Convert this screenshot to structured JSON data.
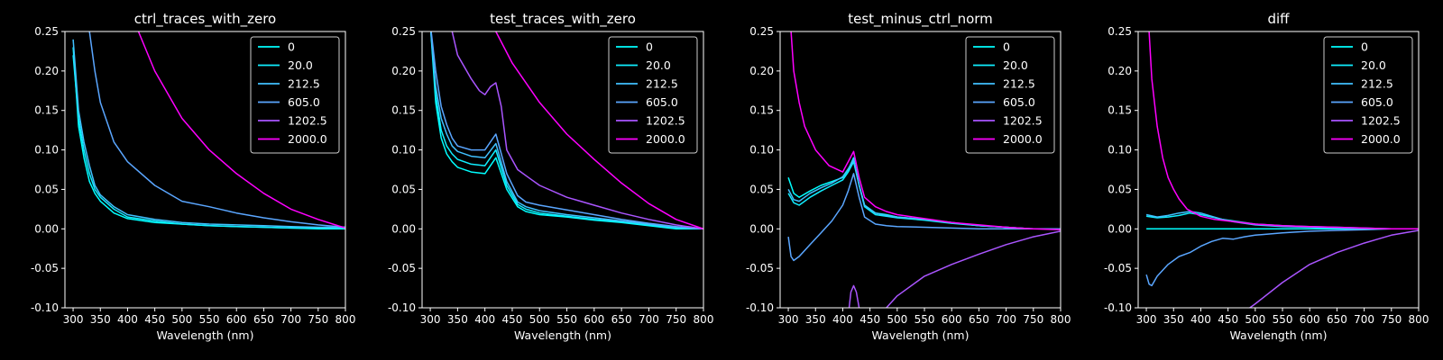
{
  "figure": {
    "background": "#000000",
    "foreground": "#ffffff"
  },
  "legend_entries": [
    {
      "label": "0",
      "color": "#00ffff"
    },
    {
      "label": "20.0",
      "color": "#10eeff"
    },
    {
      "label": "212.5",
      "color": "#40c0ff"
    },
    {
      "label": "605.0",
      "color": "#5aa6ff"
    },
    {
      "label": "1202.5",
      "color": "#aa55ff"
    },
    {
      "label": "2000.0",
      "color": "#ff00ff"
    }
  ],
  "chart_data": [
    {
      "type": "line",
      "title": "ctrl_traces_with_zero",
      "xlabel": "Wavelength (nm)",
      "ylabel": "",
      "xlim": [
        285,
        800
      ],
      "ylim": [
        -0.1,
        0.25
      ],
      "xticks": [
        300,
        350,
        400,
        450,
        500,
        550,
        600,
        650,
        700,
        750,
        800
      ],
      "yticks": [
        -0.1,
        -0.05,
        0.0,
        0.05,
        0.1,
        0.15,
        0.2,
        0.25
      ],
      "legend_position": "upper right",
      "grid": false,
      "series": [
        {
          "name": "0",
          "color": "#00ffff",
          "x": [
            300,
            310,
            320,
            330,
            340,
            350,
            375,
            400,
            450,
            500,
            550,
            600,
            650,
            700,
            750,
            800
          ],
          "y": [
            0.23,
            0.13,
            0.09,
            0.06,
            0.045,
            0.035,
            0.02,
            0.013,
            0.008,
            0.006,
            0.004,
            0.003,
            0.002,
            0.001,
            0.0,
            0.0
          ]
        },
        {
          "name": "20.0",
          "color": "#10eeff",
          "x": [
            300,
            310,
            320,
            330,
            340,
            350,
            375,
            400,
            450,
            500,
            550,
            600,
            650,
            700,
            750,
            800
          ],
          "y": [
            0.22,
            0.14,
            0.1,
            0.07,
            0.05,
            0.04,
            0.025,
            0.015,
            0.01,
            0.006,
            0.004,
            0.003,
            0.002,
            0.001,
            0.001,
            0.001
          ]
        },
        {
          "name": "212.5",
          "color": "#40c0ff",
          "x": [
            300,
            310,
            320,
            330,
            340,
            350,
            375,
            400,
            450,
            500,
            550,
            600,
            650,
            700,
            750,
            800
          ],
          "y": [
            0.24,
            0.15,
            0.11,
            0.08,
            0.055,
            0.043,
            0.028,
            0.018,
            0.012,
            0.008,
            0.006,
            0.005,
            0.004,
            0.003,
            0.002,
            0.002
          ]
        },
        {
          "name": "605.0",
          "color": "#5aa6ff",
          "x": [
            300,
            330,
            340,
            350,
            375,
            400,
            450,
            500,
            550,
            600,
            650,
            700,
            750,
            800
          ],
          "y": [
            0.34,
            0.25,
            0.2,
            0.16,
            0.11,
            0.085,
            0.055,
            0.035,
            0.028,
            0.02,
            0.014,
            0.009,
            0.005,
            0.002
          ]
        },
        {
          "name": "1202.5",
          "color": "#aa55ff",
          "x": [],
          "y": []
        },
        {
          "name": "2000.0",
          "color": "#ff00ff",
          "x": [
            420,
            450,
            500,
            550,
            600,
            650,
            700,
            750,
            800
          ],
          "y": [
            0.25,
            0.2,
            0.14,
            0.1,
            0.07,
            0.045,
            0.025,
            0.012,
            0.001
          ]
        }
      ]
    },
    {
      "type": "line",
      "title": "test_traces_with_zero",
      "xlabel": "Wavelength (nm)",
      "ylabel": "",
      "xlim": [
        285,
        800
      ],
      "ylim": [
        -0.1,
        0.25
      ],
      "xticks": [
        300,
        350,
        400,
        450,
        500,
        550,
        600,
        650,
        700,
        750,
        800
      ],
      "yticks": [
        -0.1,
        -0.05,
        0.0,
        0.05,
        0.1,
        0.15,
        0.2,
        0.25
      ],
      "legend_position": "upper right",
      "grid": false,
      "series": [
        {
          "name": "0",
          "color": "#00ffff",
          "x": [
            300,
            310,
            320,
            330,
            340,
            350,
            375,
            400,
            420,
            440,
            460,
            475,
            500,
            550,
            600,
            650,
            700,
            750,
            800
          ],
          "y": [
            0.26,
            0.16,
            0.115,
            0.095,
            0.085,
            0.078,
            0.072,
            0.07,
            0.09,
            0.05,
            0.028,
            0.022,
            0.018,
            0.015,
            0.011,
            0.008,
            0.004,
            0.0,
            0.0
          ]
        },
        {
          "name": "20.0",
          "color": "#10eeff",
          "x": [
            300,
            310,
            320,
            330,
            340,
            350,
            375,
            400,
            420,
            440,
            460,
            475,
            500,
            550,
            600,
            650,
            700,
            750,
            800
          ],
          "y": [
            0.26,
            0.17,
            0.125,
            0.105,
            0.095,
            0.088,
            0.082,
            0.08,
            0.1,
            0.055,
            0.031,
            0.025,
            0.02,
            0.016,
            0.012,
            0.009,
            0.005,
            0.001,
            0.0
          ]
        },
        {
          "name": "212.5",
          "color": "#40c0ff",
          "x": [
            300,
            310,
            320,
            330,
            340,
            350,
            375,
            400,
            420,
            440,
            460,
            475,
            500,
            550,
            600,
            650,
            700,
            750,
            800
          ],
          "y": [
            0.26,
            0.18,
            0.14,
            0.12,
            0.105,
            0.098,
            0.092,
            0.09,
            0.108,
            0.06,
            0.034,
            0.028,
            0.023,
            0.018,
            0.014,
            0.01,
            0.006,
            0.002,
            0.0
          ]
        },
        {
          "name": "605.0",
          "color": "#5aa6ff",
          "x": [
            300,
            310,
            320,
            330,
            340,
            350,
            375,
            400,
            420,
            440,
            460,
            475,
            500,
            550,
            600,
            650,
            700,
            750,
            800
          ],
          "y": [
            0.26,
            0.2,
            0.155,
            0.132,
            0.115,
            0.105,
            0.1,
            0.1,
            0.12,
            0.07,
            0.042,
            0.034,
            0.03,
            0.024,
            0.018,
            0.012,
            0.007,
            0.003,
            0.0
          ]
        },
        {
          "name": "1202.5",
          "color": "#aa55ff",
          "x": [
            340,
            350,
            375,
            390,
            400,
            410,
            420,
            430,
            440,
            460,
            480,
            500,
            550,
            600,
            650,
            700,
            750,
            800
          ],
          "y": [
            0.25,
            0.22,
            0.19,
            0.175,
            0.17,
            0.18,
            0.185,
            0.155,
            0.1,
            0.075,
            0.065,
            0.055,
            0.04,
            0.03,
            0.02,
            0.012,
            0.005,
            0.0
          ]
        },
        {
          "name": "2000.0",
          "color": "#ff00ff",
          "x": [
            420,
            450,
            500,
            550,
            600,
            650,
            700,
            750,
            800
          ],
          "y": [
            0.25,
            0.21,
            0.16,
            0.12,
            0.088,
            0.058,
            0.032,
            0.012,
            0.0
          ]
        }
      ]
    },
    {
      "type": "line",
      "title": "test_minus_ctrl_norm",
      "xlabel": "Wavelength (nm)",
      "ylabel": "",
      "xlim": [
        285,
        800
      ],
      "ylim": [
        -0.1,
        0.25
      ],
      "xticks": [
        300,
        350,
        400,
        450,
        500,
        550,
        600,
        650,
        700,
        750,
        800
      ],
      "yticks": [
        -0.1,
        -0.05,
        0.0,
        0.05,
        0.1,
        0.15,
        0.2,
        0.25
      ],
      "legend_position": "upper right",
      "grid": false,
      "series": [
        {
          "name": "0",
          "color": "#00ffff",
          "x": [
            300,
            310,
            320,
            340,
            360,
            380,
            400,
            410,
            420,
            430,
            440,
            460,
            480,
            500,
            550,
            600,
            650,
            700,
            750,
            800
          ],
          "y": [
            0.065,
            0.045,
            0.04,
            0.048,
            0.055,
            0.06,
            0.065,
            0.075,
            0.09,
            0.055,
            0.03,
            0.02,
            0.018,
            0.015,
            0.012,
            0.008,
            0.004,
            0.002,
            0.0,
            0.0
          ]
        },
        {
          "name": "20.0",
          "color": "#10eeff",
          "x": [
            300,
            310,
            320,
            340,
            360,
            380,
            400,
            410,
            420,
            430,
            440,
            460,
            480,
            500,
            550,
            600,
            650,
            700,
            750,
            800
          ],
          "y": [
            0.045,
            0.033,
            0.03,
            0.04,
            0.048,
            0.055,
            0.062,
            0.072,
            0.085,
            0.055,
            0.028,
            0.018,
            0.016,
            0.014,
            0.011,
            0.007,
            0.004,
            0.002,
            0.0,
            0.0
          ]
        },
        {
          "name": "212.5",
          "color": "#40c0ff",
          "x": [
            300,
            310,
            320,
            340,
            360,
            380,
            400,
            410,
            420,
            430,
            440,
            460,
            480,
            500,
            550,
            600,
            650,
            700,
            750,
            800
          ],
          "y": [
            0.05,
            0.037,
            0.035,
            0.045,
            0.052,
            0.058,
            0.066,
            0.076,
            0.088,
            0.056,
            0.03,
            0.02,
            0.017,
            0.015,
            0.012,
            0.008,
            0.004,
            0.002,
            0.0,
            0.0
          ]
        },
        {
          "name": "605.0",
          "color": "#5aa6ff",
          "x": [
            300,
            305,
            310,
            320,
            340,
            360,
            380,
            400,
            410,
            420,
            430,
            440,
            460,
            480,
            500,
            550,
            600,
            650,
            700,
            750,
            800
          ],
          "y": [
            -0.01,
            -0.035,
            -0.04,
            -0.035,
            -0.02,
            -0.005,
            0.01,
            0.03,
            0.048,
            0.07,
            0.04,
            0.015,
            0.006,
            0.004,
            0.003,
            0.002,
            0.001,
            0.0,
            0.0,
            0.0,
            0.0
          ]
        },
        {
          "name": "1202.5",
          "color": "#aa55ff",
          "x": [
            410,
            415,
            420,
            425,
            430
          ],
          "y": [
            -0.11,
            -0.08,
            -0.072,
            -0.08,
            -0.1
          ]
        },
        {
          "name": "1202.5",
          "color": "#aa55ff",
          "x": [
            480,
            500,
            550,
            600,
            650,
            700,
            750,
            800
          ],
          "y": [
            -0.1,
            -0.085,
            -0.06,
            -0.045,
            -0.032,
            -0.02,
            -0.01,
            -0.003
          ]
        },
        {
          "name": "2000.0",
          "color": "#ff00ff",
          "x": [
            305,
            310,
            320,
            330,
            340,
            350,
            375,
            400,
            410,
            420,
            430,
            440,
            460,
            480,
            500,
            550,
            600,
            650,
            700,
            750,
            800
          ],
          "y": [
            0.25,
            0.2,
            0.16,
            0.13,
            0.115,
            0.1,
            0.08,
            0.072,
            0.085,
            0.098,
            0.065,
            0.04,
            0.028,
            0.022,
            0.018,
            0.013,
            0.008,
            0.005,
            0.002,
            0.0,
            -0.001
          ]
        }
      ]
    },
    {
      "type": "line",
      "title": "diff",
      "xlabel": "Wavelength (nm)",
      "ylabel": "",
      "xlim": [
        285,
        800
      ],
      "ylim": [
        -0.1,
        0.25
      ],
      "xticks": [
        300,
        350,
        400,
        450,
        500,
        550,
        600,
        650,
        700,
        750,
        800
      ],
      "yticks": [
        -0.1,
        -0.05,
        0.0,
        0.05,
        0.1,
        0.15,
        0.2,
        0.25
      ],
      "legend_position": "upper right",
      "grid": false,
      "series": [
        {
          "name": "0",
          "color": "#00ffff",
          "x": [
            300,
            800
          ],
          "y": [
            0.0,
            0.0
          ]
        },
        {
          "name": "20.0",
          "color": "#10eeff",
          "x": [
            300,
            320,
            340,
            360,
            380,
            400,
            420,
            440,
            460,
            480,
            500,
            550,
            600,
            650,
            700,
            750,
            800
          ],
          "y": [
            0.016,
            0.014,
            0.015,
            0.017,
            0.02,
            0.018,
            0.015,
            0.012,
            0.01,
            0.008,
            0.006,
            0.004,
            0.003,
            0.002,
            0.001,
            0.0,
            0.0
          ]
        },
        {
          "name": "212.5",
          "color": "#40c0ff",
          "x": [
            300,
            320,
            340,
            360,
            380,
            400,
            420,
            440,
            460,
            480,
            500,
            550,
            600,
            650,
            700,
            750,
            800
          ],
          "y": [
            0.018,
            0.015,
            0.017,
            0.02,
            0.022,
            0.02,
            0.016,
            0.012,
            0.009,
            0.007,
            0.005,
            0.003,
            0.002,
            0.001,
            0.0,
            0.0,
            0.0
          ]
        },
        {
          "name": "605.0",
          "color": "#5aa6ff",
          "x": [
            300,
            305,
            310,
            320,
            340,
            360,
            380,
            400,
            420,
            440,
            460,
            480,
            500,
            550,
            600,
            650,
            700,
            750,
            800
          ],
          "y": [
            -0.058,
            -0.07,
            -0.072,
            -0.06,
            -0.045,
            -0.035,
            -0.03,
            -0.022,
            -0.016,
            -0.012,
            -0.013,
            -0.01,
            -0.008,
            -0.005,
            -0.003,
            -0.002,
            -0.001,
            0.0,
            0.0
          ]
        },
        {
          "name": "1202.5",
          "color": "#aa55ff",
          "x": [
            490,
            500,
            550,
            600,
            650,
            700,
            750,
            800
          ],
          "y": [
            -0.1,
            -0.095,
            -0.068,
            -0.045,
            -0.03,
            -0.018,
            -0.008,
            -0.002
          ]
        },
        {
          "name": "2000.0",
          "color": "#ff00ff",
          "x": [
            305,
            310,
            320,
            330,
            340,
            350,
            360,
            375,
            400,
            425,
            450,
            500,
            550,
            600,
            650,
            700,
            750,
            800
          ],
          "y": [
            0.25,
            0.19,
            0.13,
            0.09,
            0.065,
            0.05,
            0.038,
            0.025,
            0.016,
            0.012,
            0.01,
            0.006,
            0.004,
            0.003,
            0.002,
            0.001,
            0.0,
            0.0
          ]
        }
      ]
    }
  ]
}
